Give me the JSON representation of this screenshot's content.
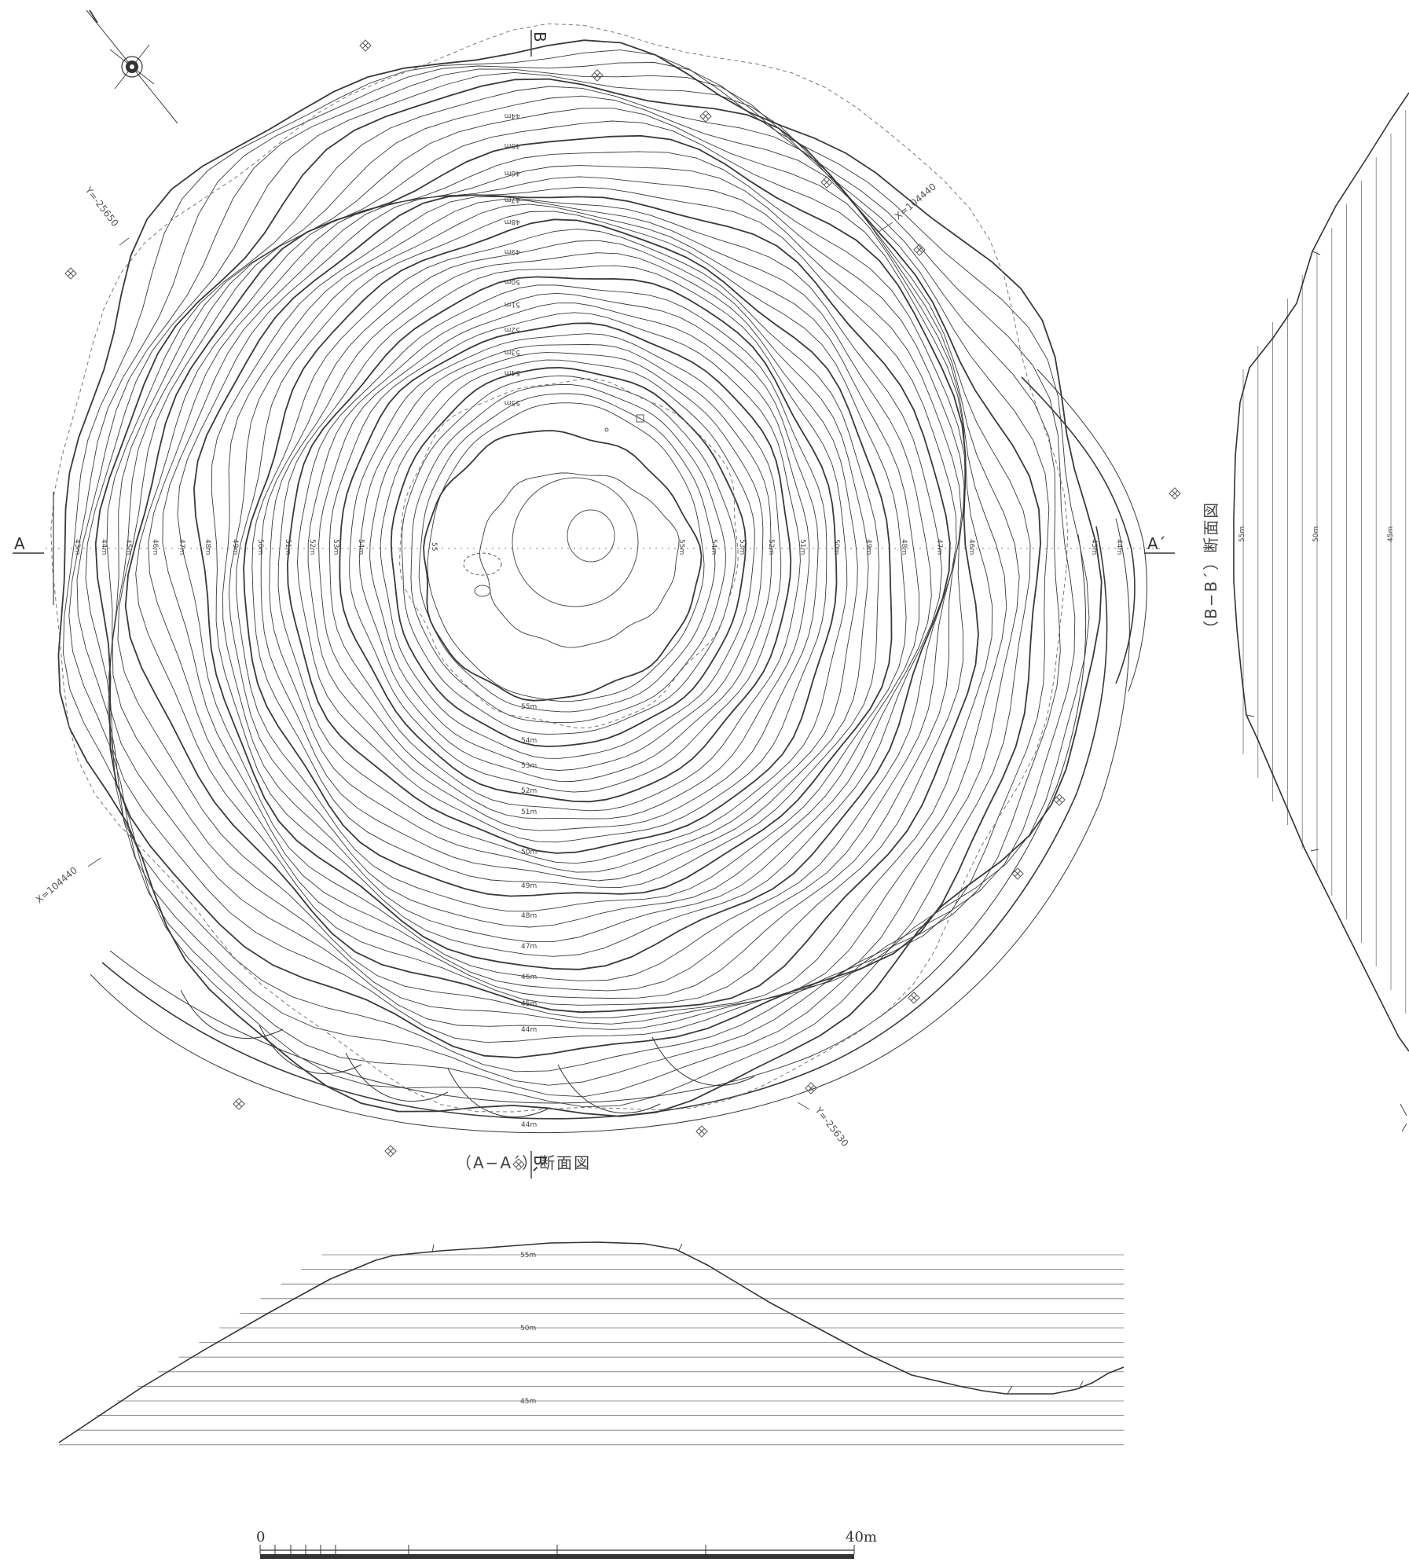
{
  "plan": {
    "section_marks": {
      "a_start": "A",
      "a_end": "A´",
      "b_start": "B",
      "b_end": "B、"
    },
    "coordinates": [
      "Y=-25650",
      "X=104440",
      "X=104440",
      "Y=-25630"
    ],
    "elevations_top": [
      "44m",
      "45m",
      "46m",
      "47m",
      "48m",
      "49m",
      "50m",
      "51m",
      "52m",
      "53m",
      "54m",
      "55m"
    ],
    "elevations_bottom": [
      "55m",
      "54m",
      "53m",
      "52m",
      "51m",
      "50m",
      "49m",
      "48m",
      "47m",
      "46m",
      "45m",
      "44m",
      "44m"
    ],
    "elevations_left": [
      "43m",
      "44m",
      "45m",
      "46m",
      "47m",
      "48m",
      "49m",
      "50m",
      "51m",
      "52m",
      "53m",
      "54m",
      "55"
    ],
    "elevations_right": [
      "55m",
      "54m",
      "53m",
      "52m",
      "51m",
      "50m",
      "49m",
      "48m",
      "47m",
      "46m",
      "45m",
      "44m"
    ]
  },
  "section_aa": {
    "title": "（A−A´）断面図",
    "labels": [
      "55m",
      "50m",
      "45m"
    ]
  },
  "section_bb": {
    "title": "（B−B´）断面図",
    "labels": [
      "55m",
      "50m",
      "45m"
    ]
  },
  "scale_bar": {
    "start": "0",
    "end": "40m"
  },
  "colors": {
    "line": "#3a3a3a",
    "faint": "#8a8a8a"
  },
  "icons": [
    "north-arrow-icon",
    "survey-point-icon"
  ]
}
